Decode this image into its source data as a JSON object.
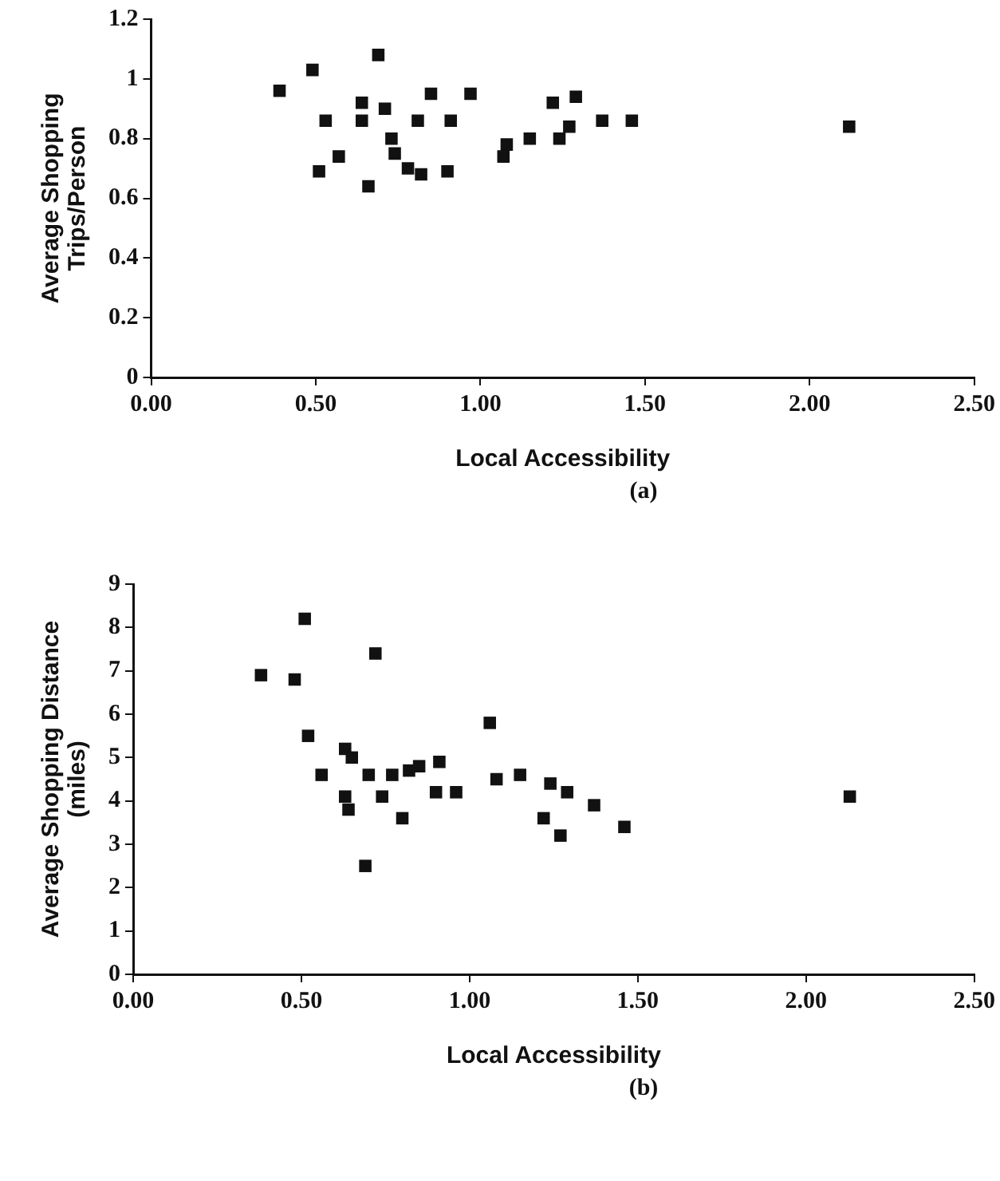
{
  "chart_data": [
    {
      "type": "scatter",
      "xlabel": "Local Accessibility",
      "ylabel": "Average Shopping\nTrips/Person",
      "annotations": [
        "(a)"
      ],
      "marker": "square",
      "legend": false,
      "grid": false,
      "x": [
        0.39,
        0.49,
        0.53,
        0.51,
        0.57,
        0.64,
        0.64,
        0.66,
        0.69,
        0.71,
        0.73,
        0.74,
        0.78,
        0.82,
        0.81,
        0.85,
        0.9,
        0.91,
        0.97,
        1.08,
        1.07,
        1.15,
        1.22,
        1.24,
        1.27,
        1.29,
        1.37,
        1.46,
        2.12
      ],
      "series": [
        {
          "color": "#111111",
          "values": [
            0.96,
            1.03,
            0.86,
            0.69,
            0.74,
            0.92,
            0.86,
            0.64,
            1.08,
            0.9,
            0.8,
            0.75,
            0.7,
            0.68,
            0.86,
            0.95,
            0.69,
            0.86,
            0.95,
            0.78,
            0.74,
            0.8,
            0.92,
            0.8,
            0.84,
            0.94,
            0.86,
            0.86,
            0.84
          ]
        }
      ],
      "xlim": [
        0,
        2.5
      ],
      "xticks": [
        {
          "value": 0,
          "label": "0.00"
        },
        {
          "value": 0.5,
          "label": "0.50"
        },
        {
          "value": 1,
          "label": "1.00"
        },
        {
          "value": 1.5,
          "label": "1.50"
        },
        {
          "value": 2,
          "label": "2.00"
        },
        {
          "value": 2.5,
          "label": "2.50"
        }
      ],
      "ylim": [
        0,
        1.2
      ],
      "yticks": [
        0,
        0.2,
        0.4,
        0.6,
        0.8,
        1,
        1.2
      ]
    },
    {
      "type": "scatter",
      "xlabel": "Local Accessibility",
      "ylabel": "Average Shopping Distance\n(miles)",
      "annotations": [
        "(b)"
      ],
      "marker": "square",
      "legend": false,
      "grid": false,
      "x": [
        0.38,
        0.48,
        0.51,
        0.52,
        0.56,
        0.63,
        0.65,
        0.63,
        0.64,
        0.69,
        0.7,
        0.72,
        0.74,
        0.77,
        0.8,
        0.82,
        0.85,
        0.9,
        0.91,
        0.96,
        1.06,
        1.08,
        1.15,
        1.22,
        1.24,
        1.27,
        1.29,
        1.37,
        1.46,
        2.13
      ],
      "series": [
        {
          "color": "#111111",
          "values": [
            6.9,
            6.8,
            8.2,
            5.5,
            4.6,
            5.2,
            5.0,
            4.1,
            3.8,
            2.5,
            4.6,
            7.4,
            4.1,
            4.6,
            3.6,
            4.7,
            4.8,
            4.2,
            4.9,
            4.2,
            5.8,
            4.5,
            4.6,
            3.6,
            4.4,
            3.2,
            4.2,
            3.9,
            3.4,
            4.1
          ]
        }
      ],
      "xlim": [
        0,
        2.5
      ],
      "xticks": [
        {
          "value": 0,
          "label": "0.00"
        },
        {
          "value": 0.5,
          "label": "0.50"
        },
        {
          "value": 1,
          "label": "1.00"
        },
        {
          "value": 1.5,
          "label": "1.50"
        },
        {
          "value": 2,
          "label": "2.00"
        },
        {
          "value": 2.5,
          "label": "2.50"
        }
      ],
      "ylim": [
        0,
        9
      ],
      "yticks": [
        0,
        1,
        2,
        3,
        4,
        5,
        6,
        7,
        8,
        9
      ]
    }
  ]
}
